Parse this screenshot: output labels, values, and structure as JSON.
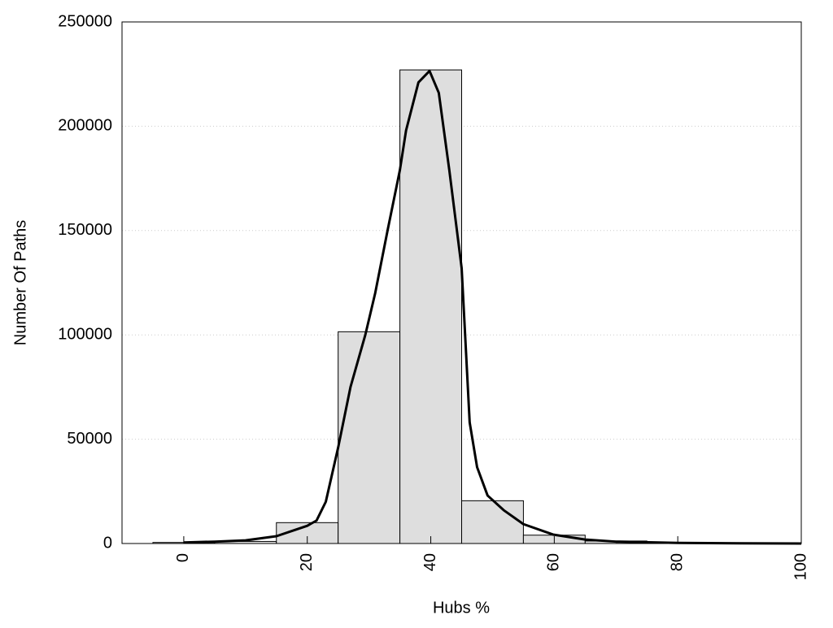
{
  "chart_data": {
    "type": "histogram",
    "xlabel": "Hubs %",
    "ylabel": "Number Of Paths",
    "xlim": [
      -10,
      100
    ],
    "ylim": [
      0,
      250000
    ],
    "xticks": [
      0,
      20,
      40,
      60,
      80,
      100
    ],
    "yticks": [
      0,
      50000,
      100000,
      150000,
      200000,
      250000
    ],
    "grid": true,
    "series": [
      {
        "type": "histogram",
        "color": "#dedede",
        "bins": [
          -5,
          5,
          15,
          25,
          35,
          45,
          55,
          65,
          75,
          85,
          95
        ],
        "values": [
          500,
          1000,
          10000,
          101500,
          227000,
          20500,
          4000,
          1200,
          400,
          150
        ]
      },
      {
        "type": "line",
        "color": "#000000",
        "x": [
          0,
          5,
          10,
          15,
          18,
          20,
          21.5,
          23,
          25,
          27,
          29.4,
          31,
          33,
          35,
          36,
          38,
          39.8,
          41.3,
          43,
          45,
          46.3,
          47.5,
          49.2,
          51.8,
          55,
          59.8,
          65,
          70,
          80,
          90,
          100
        ],
        "values": [
          500,
          900,
          1500,
          3500,
          6500,
          8500,
          11000,
          20000,
          46000,
          75000,
          100000,
          120000,
          150000,
          179000,
          198000,
          221000,
          226500,
          216000,
          179000,
          132000,
          58000,
          36600,
          23000,
          16000,
          9300,
          4300,
          1900,
          900,
          300,
          100,
          0
        ]
      }
    ]
  }
}
